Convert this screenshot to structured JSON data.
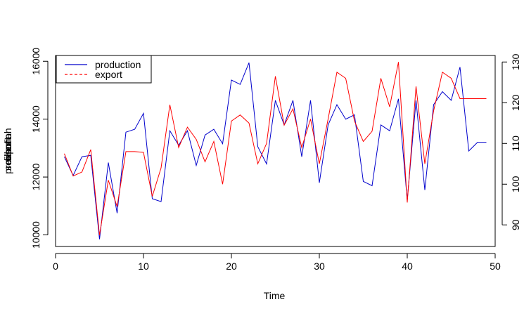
{
  "chart_data": {
    "type": "line",
    "title": "",
    "xlabel": "Time",
    "ylabel_left_overlapped": [
      "seasonal",
      "production",
      "export",
      "filled"
    ],
    "xlim": [
      0,
      50
    ],
    "ylim_left": [
      9600,
      16200
    ],
    "ylim_right": [
      84.7,
      131.6
    ],
    "x_ticks": [
      0,
      10,
      20,
      30,
      40,
      50
    ],
    "y_left_ticks": [
      10000,
      12000,
      14000,
      16000
    ],
    "y_right_ticks": [
      90,
      100,
      110,
      120,
      130
    ],
    "grid": false,
    "legend_position": "top-left",
    "series": [
      {
        "name": "production",
        "color": "#0000cc",
        "line_style": "solid",
        "axis": "left",
        "x": [
          1,
          2,
          3,
          4,
          5,
          6,
          7,
          8,
          9,
          10,
          11,
          12,
          13,
          14,
          15,
          16,
          17,
          18,
          19,
          20,
          21,
          22,
          23,
          24,
          25,
          26,
          27,
          28,
          29,
          30,
          31,
          32,
          33,
          34,
          35,
          36,
          37,
          38,
          39,
          40,
          41,
          42,
          43,
          44,
          45,
          46,
          47,
          48,
          49
        ],
        "values": [
          12700,
          12050,
          12700,
          12750,
          9850,
          12500,
          10750,
          13550,
          13650,
          14200,
          11250,
          11150,
          13600,
          13100,
          13600,
          12400,
          13450,
          13650,
          13150,
          15350,
          15200,
          15950,
          13050,
          12450,
          14650,
          13800,
          14650,
          12700,
          14650,
          11800,
          13800,
          14500,
          14000,
          14150,
          11850,
          11700,
          13800,
          13600,
          14700,
          11200,
          14650,
          11550,
          14500,
          14950,
          14650,
          15800,
          12900,
          13200,
          13200
        ]
      },
      {
        "name": "export",
        "color": "#ff0000",
        "line_style": "dashed",
        "axis": "right",
        "x": [
          1,
          2,
          3,
          4,
          5,
          6,
          7,
          8,
          9,
          10,
          11,
          12,
          13,
          14,
          15,
          16,
          17,
          18,
          19,
          20,
          21,
          22,
          23,
          24,
          25,
          26,
          27,
          28,
          29,
          30,
          31,
          32,
          33,
          34,
          35,
          36,
          37,
          38,
          39,
          40,
          41,
          42,
          43,
          44,
          45,
          46,
          47,
          48,
          49
        ],
        "values": [
          107.5,
          102.0,
          103.0,
          108.5,
          87.5,
          101.0,
          94.5,
          108.0,
          108.0,
          107.8,
          97.0,
          104.0,
          119.5,
          109.0,
          114.0,
          111.0,
          105.5,
          110.5,
          100.0,
          115.5,
          117.0,
          115.0,
          105.0,
          110.0,
          126.5,
          114.5,
          118.5,
          109.0,
          116.0,
          105.0,
          116.0,
          127.5,
          126.0,
          115.5,
          110.5,
          113.0,
          126.0,
          119.0,
          130.0,
          95.5,
          124.0,
          105.0,
          118.0,
          127.5,
          126.0,
          121.0,
          121.0,
          121.0,
          121.0
        ]
      }
    ]
  }
}
